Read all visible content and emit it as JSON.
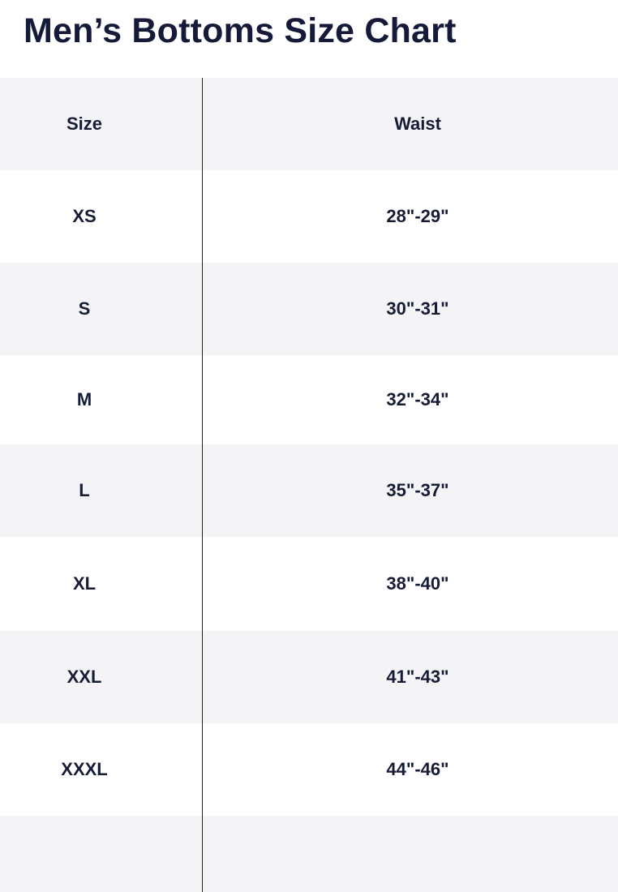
{
  "title": "Men’s Bottoms Size Chart",
  "headers": {
    "size": "Size",
    "waist": "Waist"
  },
  "rows": [
    {
      "size": "XS",
      "waist": "28\"-29\""
    },
    {
      "size": "S",
      "waist": "30\"-31\""
    },
    {
      "size": "M",
      "waist": "32\"-34\""
    },
    {
      "size": "L",
      "waist": "35\"-37\""
    },
    {
      "size": "XL",
      "waist": "38\"-40\""
    },
    {
      "size": "XXL",
      "waist": "41\"-43\""
    },
    {
      "size": "XXXL",
      "waist": "44\"-46\""
    }
  ]
}
